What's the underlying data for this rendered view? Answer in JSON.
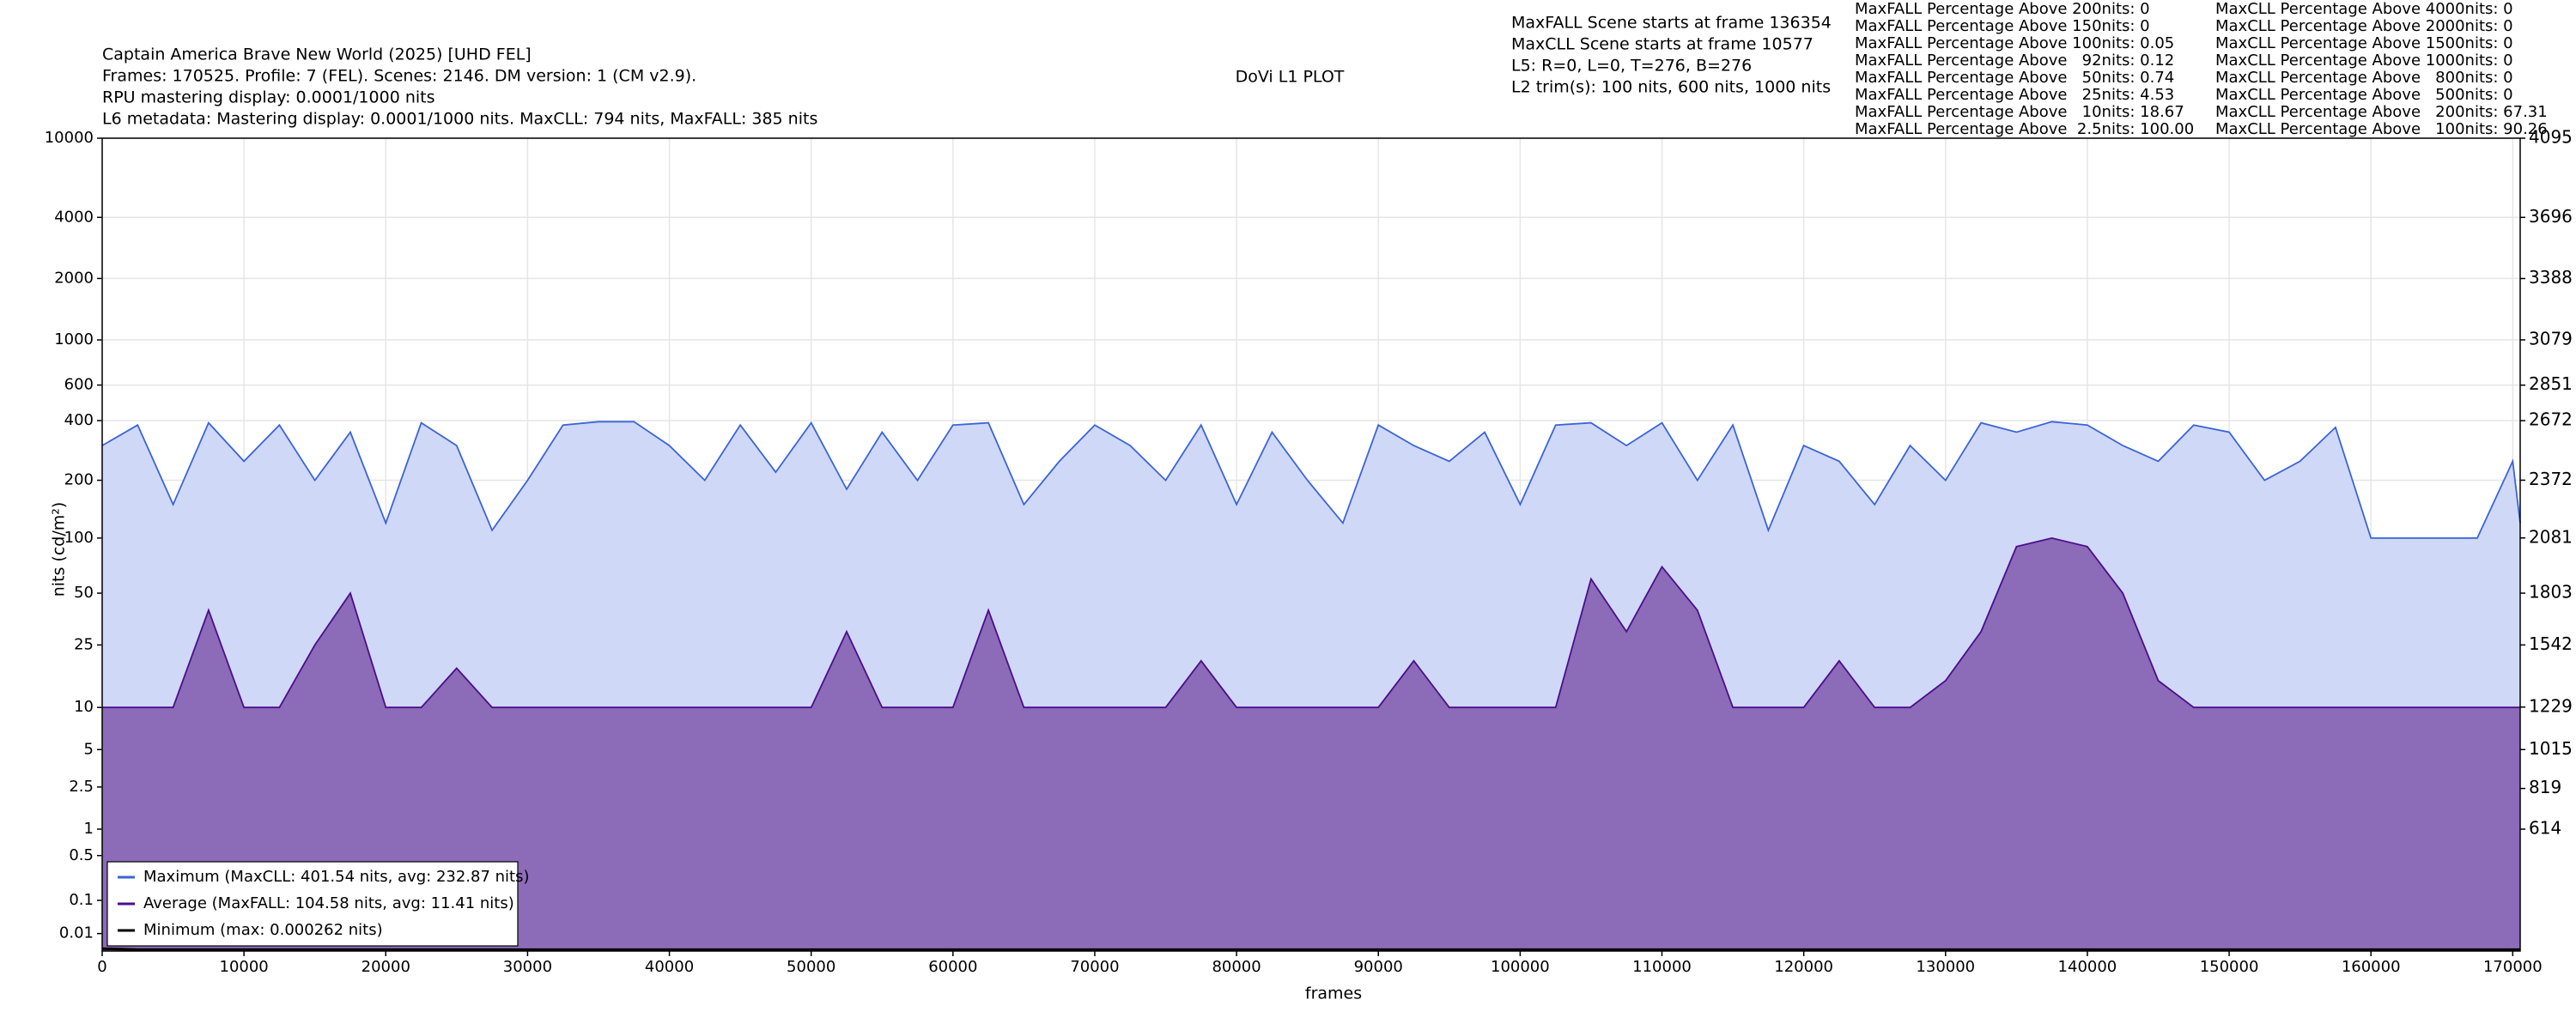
{
  "chart_data": {
    "type": "line",
    "title": "Captain America Brave New World (2025) [UHD FEL]",
    "subtitle": [
      "Frames: 170525. Profile: 7 (FEL). Scenes: 2146. DM version: 1 (CM v2.9).",
      "RPU mastering display: 0.0001/1000 nits",
      "L6 metadata: Mastering display: 0.0001/1000 nits. MaxCLL: 794 nits, MaxFALL: 385 nits"
    ],
    "plot_title": "DoVi L1 PLOT",
    "info": [
      "MaxFALL Scene starts at frame 136354",
      "MaxCLL Scene starts at frame 10577",
      "L5: R=0, L=0, T=276, B=276",
      "L2 trim(s): 100 nits, 600 nits, 1000 nits"
    ],
    "maxfall_stats": [
      "MaxFALL Percentage Above 200nits: 0",
      "MaxFALL Percentage Above 150nits: 0",
      "MaxFALL Percentage Above 100nits: 0.05",
      "MaxFALL Percentage Above   92nits: 0.12",
      "MaxFALL Percentage Above   50nits: 0.74",
      "MaxFALL Percentage Above   25nits: 4.53",
      "MaxFALL Percentage Above   10nits: 18.67",
      "MaxFALL Percentage Above  2.5nits: 100.00"
    ],
    "maxcll_stats": [
      "MaxCLL Percentage Above 4000nits: 0",
      "MaxCLL Percentage Above 2000nits: 0",
      "MaxCLL Percentage Above 1500nits: 0",
      "MaxCLL Percentage Above 1000nits: 0",
      "MaxCLL Percentage Above   800nits: 0",
      "MaxCLL Percentage Above   500nits: 0",
      "MaxCLL Percentage Above   200nits: 67.31",
      "MaxCLL Percentage Above   100nits: 90.26"
    ],
    "xlabel": "frames",
    "ylabel": "nits (cd/m²)",
    "x": [
      0,
      2500,
      5000,
      7500,
      10000,
      12500,
      15000,
      17500,
      20000,
      22500,
      25000,
      27500,
      30000,
      32500,
      35000,
      37500,
      40000,
      42500,
      45000,
      47500,
      50000,
      52500,
      55000,
      57500,
      60000,
      62500,
      65000,
      67500,
      70000,
      72500,
      75000,
      77500,
      80000,
      82500,
      85000,
      87500,
      90000,
      92500,
      95000,
      97500,
      100000,
      102500,
      105000,
      107500,
      110000,
      112500,
      115000,
      117500,
      120000,
      122500,
      125000,
      127500,
      130000,
      132500,
      135000,
      137500,
      140000,
      142500,
      145000,
      147500,
      150000,
      152500,
      155000,
      157500,
      160000,
      162500,
      165000,
      167500,
      170000,
      170525
    ],
    "series": [
      {
        "name": "Maximum (MaxCLL: 401.54 nits, avg: 232.87 nits)",
        "color": "#3a64d8",
        "fill": "#d0d8f8",
        "values": [
          300,
          380,
          150,
          390,
          250,
          380,
          200,
          350,
          120,
          390,
          300,
          110,
          200,
          380,
          395,
          395,
          300,
          200,
          380,
          220,
          390,
          180,
          350,
          200,
          380,
          390,
          150,
          250,
          380,
          300,
          200,
          380,
          150,
          350,
          200,
          120,
          380,
          300,
          250,
          350,
          150,
          380,
          390,
          300,
          390,
          200,
          380,
          110,
          300,
          250,
          150,
          300,
          200,
          390,
          350,
          395,
          380,
          300,
          250,
          380,
          350,
          200,
          250,
          370,
          100,
          100,
          100,
          100,
          250,
          120
        ]
      },
      {
        "name": "Average (MaxFALL: 104.58 nits, avg: 11.41 nits)",
        "color": "#4b0e8c",
        "fill": "#8c6bb8",
        "values": [
          10,
          10,
          10,
          40,
          10,
          10,
          25,
          50,
          10,
          10,
          18,
          10,
          10,
          10,
          10,
          10,
          10,
          10,
          10,
          10,
          10,
          30,
          10,
          10,
          10,
          40,
          10,
          10,
          10,
          10,
          10,
          20,
          10,
          10,
          10,
          10,
          10,
          20,
          10,
          10,
          10,
          10,
          60,
          30,
          70,
          40,
          10,
          10,
          10,
          20,
          10,
          10,
          15,
          30,
          90,
          100,
          90,
          50,
          15,
          10,
          10,
          10,
          10,
          10,
          10,
          10,
          10,
          10,
          10,
          10
        ]
      },
      {
        "name": "Minimum (max: 0.000262 nits)",
        "color": "#000000",
        "values": [
          0.000262,
          0.0001,
          0.0001,
          0.0001,
          0.0001,
          0.0001,
          0.0001,
          0.0001,
          0.0001,
          0.0001,
          0.0001,
          0.0001,
          0.0001,
          0.0001,
          0.0001,
          0.0001,
          0.0001,
          0.0001,
          0.0001,
          0.0001,
          0.0001,
          0.0001,
          0.0001,
          0.0001,
          0.0001,
          0.0001,
          0.0001,
          0.0001,
          0.0001,
          0.0001,
          0.0001,
          0.0001,
          0.0001,
          0.0001,
          0.0001,
          0.0001,
          0.0001,
          0.0001,
          0.0001,
          0.0001,
          0.0001,
          0.0001,
          0.0001,
          0.0001,
          0.0001,
          0.0001,
          0.0001,
          0.0001,
          0.0001,
          0.0001,
          0.0001,
          0.0001,
          0.0001,
          0.0001,
          0.0001,
          0.0001,
          0.0001,
          0.0001,
          0.0001,
          0.0001,
          0.0001,
          0.0001,
          0.0001,
          0.0001,
          0.0001,
          0.0001,
          0.0001,
          0.0001,
          0.0001,
          0.0001
        ]
      }
    ],
    "xlim": [
      0,
      170525
    ],
    "xticks": [
      0,
      10000,
      20000,
      30000,
      40000,
      50000,
      60000,
      70000,
      80000,
      90000,
      100000,
      110000,
      120000,
      130000,
      140000,
      150000,
      160000,
      170000
    ],
    "ylim": [
      0,
      10000
    ],
    "yscale": "pq",
    "yticks": [
      0.01,
      0.1,
      0.5,
      1,
      2.5,
      5,
      10,
      25,
      50,
      100,
      200,
      400,
      600,
      1000,
      2000,
      4000,
      10000
    ],
    "y2lim": [
      0,
      4095
    ],
    "y2ticks": [
      614,
      819,
      1015,
      1229,
      1542,
      1803,
      2081,
      2372,
      2672,
      2851,
      3079,
      3388,
      3696,
      4095
    ],
    "grid": true,
    "legend": "lower left"
  }
}
